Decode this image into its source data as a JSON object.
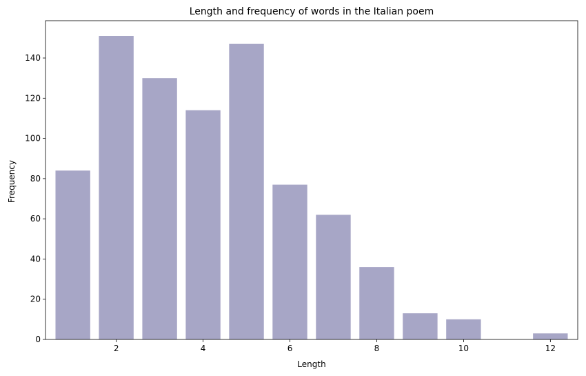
{
  "chart_data": {
    "type": "bar",
    "title": "Length and frequency of words in the Italian poem",
    "xlabel": "Length",
    "ylabel": "Frequency",
    "x": [
      1,
      2,
      3,
      4,
      5,
      6,
      7,
      8,
      9,
      10,
      12
    ],
    "values": [
      84,
      151,
      130,
      114,
      147,
      77,
      62,
      36,
      13,
      10,
      3
    ],
    "xlim": [
      0.37,
      12.63
    ],
    "ylim": [
      0,
      158.55
    ],
    "xticks": [
      2,
      4,
      6,
      8,
      10,
      12
    ],
    "yticks": [
      0,
      20,
      40,
      60,
      80,
      100,
      120,
      140
    ],
    "bar_color": "#a7a6c6",
    "grid": false,
    "legend": "none"
  }
}
